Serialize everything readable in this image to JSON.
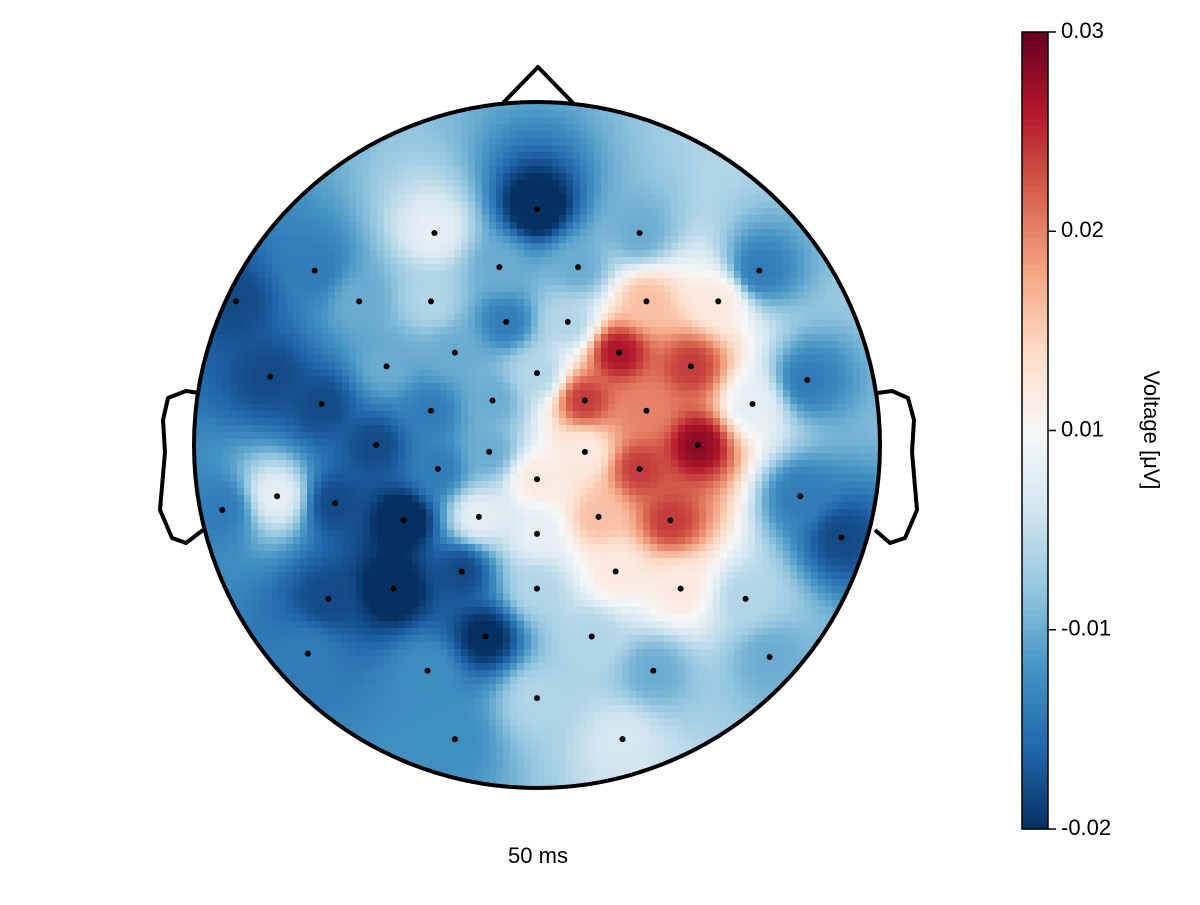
{
  "chart_data": {
    "type": "topoplot",
    "title": "50 ms",
    "colorbar_label": "Voltage [μV]",
    "colormap": "RdBu_r",
    "clim": [
      -0.0175,
      0.0325
    ],
    "cticks": [
      {
        "value": -0.0175,
        "label": "-0.02"
      },
      {
        "value": -0.005,
        "label": "-0.01"
      },
      {
        "value": 0.0075,
        "label": "0.01"
      },
      {
        "value": 0.02,
        "label": "0.02"
      },
      {
        "value": 0.0325,
        "label": "0.03"
      }
    ],
    "x": [
      0.0,
      -0.3,
      0.3,
      -0.65,
      -0.11,
      0.12,
      0.65,
      -0.88,
      -0.52,
      -0.31,
      -0.09,
      0.09,
      0.32,
      0.53,
      -0.24,
      -0.44,
      0.0,
      0.24,
      0.45,
      0.79,
      -0.78,
      -0.63,
      -0.31,
      -0.13,
      0.14,
      0.32,
      0.63,
      -0.47,
      -0.14,
      0.14,
      0.47,
      -0.29,
      0.0,
      0.3,
      -0.76,
      -0.59,
      -0.39,
      -0.17,
      0.18,
      0.39,
      0.77,
      -0.92,
      0.0,
      0.89,
      -0.22,
      0.23,
      -0.42,
      0.0,
      0.42,
      -0.61,
      0.61,
      -0.15,
      0.16,
      -0.67,
      0.68,
      -0.32,
      0.34,
      0.0,
      -0.24,
      0.25
    ],
    "y": [
      0.69,
      0.62,
      0.62,
      0.51,
      0.52,
      0.52,
      0.51,
      0.42,
      0.42,
      0.42,
      0.36,
      0.36,
      0.42,
      0.42,
      0.27,
      0.23,
      0.21,
      0.27,
      0.23,
      0.19,
      0.2,
      0.12,
      0.1,
      0.13,
      0.13,
      0.1,
      0.12,
      0.0,
      -0.02,
      -0.02,
      0.0,
      -0.07,
      -0.1,
      -0.07,
      -0.15,
      -0.17,
      -0.22,
      -0.21,
      -0.21,
      -0.22,
      -0.15,
      -0.19,
      -0.26,
      -0.27,
      -0.37,
      -0.37,
      -0.42,
      -0.42,
      -0.42,
      -0.45,
      -0.45,
      -0.56,
      -0.56,
      -0.61,
      -0.62,
      -0.66,
      -0.66,
      -0.74,
      -0.86,
      -0.86
    ],
    "values": [
      -0.02,
      0.005,
      -0.005,
      -0.01,
      -0.005,
      -0.005,
      -0.01,
      -0.015,
      -0.005,
      0.0,
      -0.01,
      0.0,
      0.015,
      0.01,
      -0.005,
      -0.005,
      0.0,
      0.028,
      0.025,
      -0.01,
      -0.015,
      -0.015,
      -0.01,
      -0.005,
      0.025,
      0.02,
      0.005,
      -0.015,
      -0.005,
      0.01,
      0.03,
      -0.01,
      0.01,
      0.025,
      0.005,
      -0.015,
      -0.02,
      0.005,
      0.015,
      0.025,
      -0.01,
      -0.01,
      0.005,
      -0.015,
      -0.015,
      0.01,
      -0.02,
      0.0,
      0.01,
      -0.015,
      0.0,
      -0.018,
      0.0,
      -0.01,
      -0.005,
      -0.008,
      -0.005,
      0.0,
      -0.008,
      0.003
    ]
  }
}
